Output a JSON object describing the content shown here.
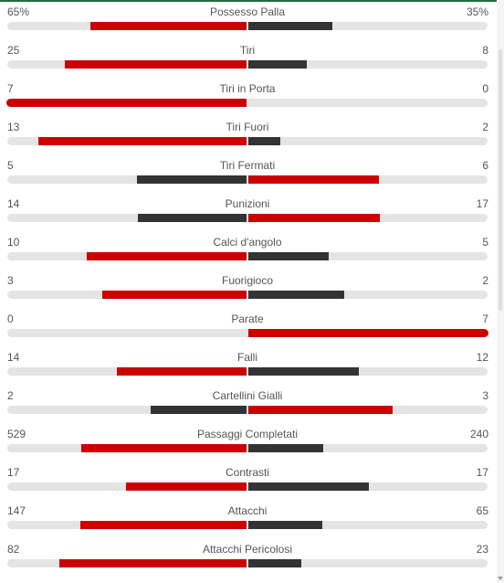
{
  "colors": {
    "accent_red": "#cc0000",
    "dark": "#333333",
    "track": "#e4e4e4",
    "top_line": "#1f6f3a"
  },
  "stats": [
    {
      "label": "Possesso Palla",
      "home": "65%",
      "away": "35%",
      "home_val": 65,
      "away_val": 35
    },
    {
      "label": "Tiri",
      "home": "25",
      "away": "8",
      "home_val": 25,
      "away_val": 8
    },
    {
      "label": "Tiri in Porta",
      "home": "7",
      "away": "0",
      "home_val": 7,
      "away_val": 0
    },
    {
      "label": "Tiri Fuori",
      "home": "13",
      "away": "2",
      "home_val": 13,
      "away_val": 2
    },
    {
      "label": "Tiri Fermati",
      "home": "5",
      "away": "6",
      "home_val": 5,
      "away_val": 6
    },
    {
      "label": "Punizioni",
      "home": "14",
      "away": "17",
      "home_val": 14,
      "away_val": 17
    },
    {
      "label": "Calci d'angolo",
      "home": "10",
      "away": "5",
      "home_val": 10,
      "away_val": 5
    },
    {
      "label": "Fuorigioco",
      "home": "3",
      "away": "2",
      "home_val": 3,
      "away_val": 2
    },
    {
      "label": "Parate",
      "home": "0",
      "away": "7",
      "home_val": 0,
      "away_val": 7
    },
    {
      "label": "Falli",
      "home": "14",
      "away": "12",
      "home_val": 14,
      "away_val": 12
    },
    {
      "label": "Cartellini Gialli",
      "home": "2",
      "away": "3",
      "home_val": 2,
      "away_val": 3
    },
    {
      "label": "Passaggi Completati",
      "home": "529",
      "away": "240",
      "home_val": 529,
      "away_val": 240
    },
    {
      "label": "Contrasti",
      "home": "17",
      "away": "17",
      "home_val": 17,
      "away_val": 17
    },
    {
      "label": "Attacchi",
      "home": "147",
      "away": "65",
      "home_val": 147,
      "away_val": 65
    },
    {
      "label": "Attacchi Pericolosi",
      "home": "82",
      "away": "23",
      "home_val": 82,
      "away_val": 23
    }
  ]
}
